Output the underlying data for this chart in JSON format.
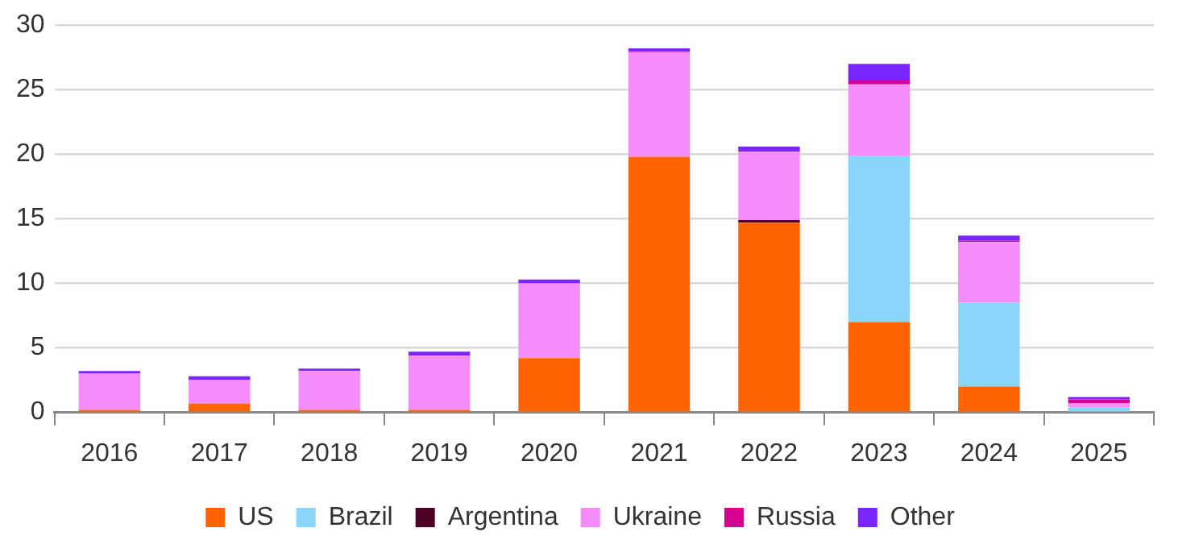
{
  "chart_data": {
    "type": "bar",
    "stacked": true,
    "categories": [
      "2016",
      "2017",
      "2018",
      "2019",
      "2020",
      "2021",
      "2022",
      "2023",
      "2024",
      "2025"
    ],
    "series": [
      {
        "name": "US",
        "color": "#ff6200",
        "values": [
          0.2,
          0.7,
          0.2,
          0.2,
          4.2,
          19.8,
          14.7,
          7.0,
          2.0,
          0
        ]
      },
      {
        "name": "Brazil",
        "color": "#89d6fa",
        "values": [
          0,
          0,
          0,
          0,
          0,
          0,
          0,
          12.9,
          6.5,
          0.4
        ]
      },
      {
        "name": "Argentina",
        "color": "#4d0026",
        "values": [
          0,
          0,
          0,
          0,
          0,
          0,
          0.2,
          0,
          0,
          0
        ]
      },
      {
        "name": "Ukraine",
        "color": "#f68cfa",
        "values": [
          2.8,
          1.8,
          3.0,
          4.2,
          5.8,
          8.1,
          5.3,
          5.5,
          4.7,
          0.3
        ]
      },
      {
        "name": "Russia",
        "color": "#d6008f",
        "values": [
          0,
          0,
          0,
          0,
          0,
          0.1,
          0,
          0.3,
          0.1,
          0.3
        ]
      },
      {
        "name": "Other",
        "color": "#7a24ff",
        "values": [
          0.2,
          0.3,
          0.2,
          0.3,
          0.3,
          0.2,
          0.4,
          1.3,
          0.4,
          0.2
        ]
      }
    ],
    "ylim": [
      0,
      30
    ],
    "yticks": [
      0,
      5,
      10,
      15,
      20,
      25,
      30
    ],
    "grid": "y",
    "legend": "bottom"
  }
}
